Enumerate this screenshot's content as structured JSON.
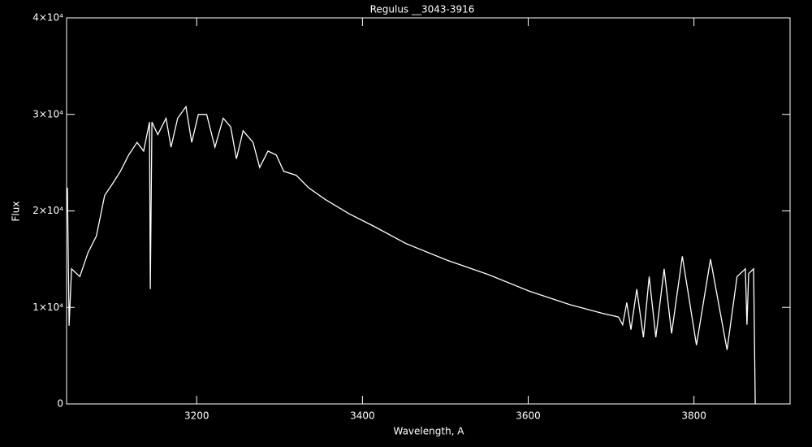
{
  "chart_data": {
    "type": "line",
    "title": "Regulus __3043-3916",
    "x_label": "Wavelength, A",
    "y_label": "Flux",
    "xlim": [
      3043,
      3916
    ],
    "ylim": [
      0,
      40000
    ],
    "xticks": [
      3200,
      3400,
      3600,
      3800
    ],
    "yticks": [
      0,
      {
        "value": 10000,
        "label": "1×10⁴"
      },
      {
        "value": 20000,
        "label": "2×10⁴"
      },
      {
        "value": 30000,
        "label": "3×10⁴"
      },
      {
        "value": 40000,
        "label": "4×10⁴"
      }
    ],
    "series": [
      {
        "color": "#ffffff",
        "x": [
          3044,
          3046,
          3049,
          3059,
          3069,
          3079,
          3089,
          3099,
          3108,
          3118,
          3128,
          3136,
          3143,
          3144,
          3146,
          3153,
          3163,
          3169,
          3177,
          3187,
          3194,
          3202,
          3212,
          3222,
          3232,
          3241,
          3248,
          3256,
          3268,
          3276,
          3286,
          3296,
          3305,
          3320,
          3335,
          3355,
          3384,
          3414,
          3453,
          3502,
          3552,
          3601,
          3650,
          3689,
          3709,
          3714,
          3719,
          3724,
          3731,
          3739,
          3746,
          3754,
          3764,
          3773,
          3786,
          3803,
          3820,
          3840,
          3852,
          3862,
          3864,
          3866,
          3872,
          3874
        ],
        "values": [
          22400,
          8100,
          14000,
          13200,
          15700,
          17400,
          21600,
          22900,
          24100,
          25800,
          27100,
          26200,
          29200,
          11900,
          29200,
          27900,
          29600,
          26600,
          29600,
          30800,
          27100,
          30000,
          30000,
          26600,
          29600,
          28700,
          25400,
          28300,
          27100,
          24500,
          26200,
          25800,
          24100,
          23700,
          22400,
          21200,
          19700,
          18400,
          16600,
          14900,
          13400,
          11700,
          10300,
          9400,
          9000,
          8200,
          10500,
          7700,
          11900,
          6900,
          13200,
          6900,
          14000,
          7300,
          15300,
          6100,
          15000,
          5600,
          13200,
          14000,
          8200,
          13500,
          14000,
          0
        ]
      }
    ]
  }
}
